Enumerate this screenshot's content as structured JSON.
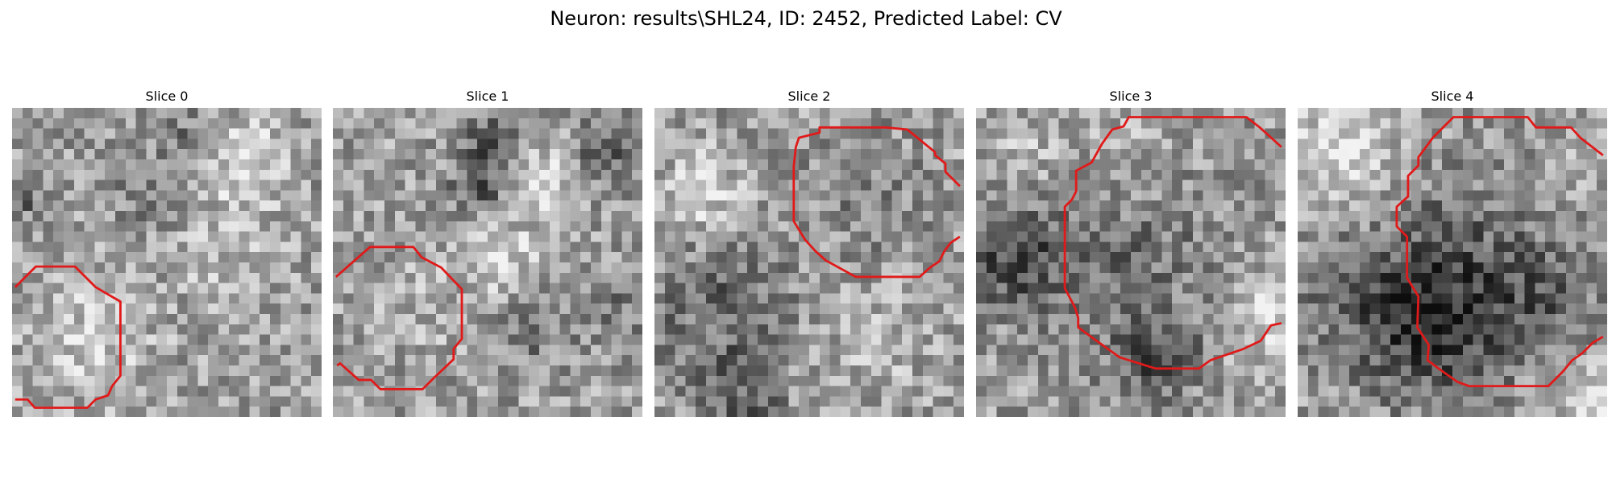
{
  "figure": {
    "title": "Neuron: results\\SHL24, ID: 2452, Predicted Label: CV"
  },
  "panels": [
    {
      "title": "Slice 0"
    },
    {
      "title": "Slice 1"
    },
    {
      "title": "Slice 2"
    },
    {
      "title": "Slice 3"
    },
    {
      "title": "Slice 4"
    }
  ],
  "colors": {
    "contour": "#e01a1a"
  }
}
